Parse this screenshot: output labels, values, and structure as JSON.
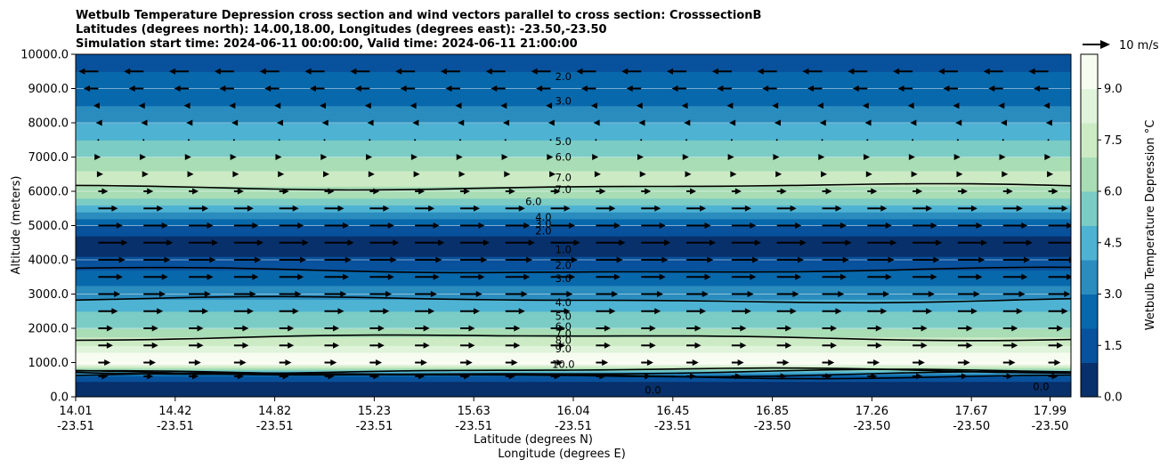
{
  "chart_data": {
    "type": "contour",
    "title_lines": [
      "Wetbulb Temperature Depression cross section and wind vectors parallel to cross section: CrosssectionB",
      "Latitudes (degrees north): 14.00,18.00, Longitudes (degrees east): -23.50,-23.50",
      "Simulation start time: 2024-06-11 00:00:00, Valid time: 2024-06-11 21:00:00"
    ],
    "ylabel": "Altitude (meters)",
    "xlabel_lat": "Latitude (degrees N)",
    "xlabel_lon": "Longitude (degrees E)",
    "ylim": [
      0,
      10000
    ],
    "y_ticks": [
      "0.0",
      "1000.0",
      "2000.0",
      "3000.0",
      "4000.0",
      "5000.0",
      "6000.0",
      "7000.0",
      "8000.0",
      "9000.0",
      "10000.0"
    ],
    "y_tick_values": [
      0,
      1000,
      2000,
      3000,
      4000,
      5000,
      6000,
      7000,
      8000,
      9000,
      10000
    ],
    "x_tick_lat": [
      "14.01",
      "14.42",
      "14.82",
      "15.23",
      "15.63",
      "16.04",
      "16.45",
      "16.85",
      "17.26",
      "17.67",
      "17.99"
    ],
    "x_tick_lon": [
      "-23.51",
      "-23.51",
      "-23.51",
      "-23.51",
      "-23.51",
      "-23.51",
      "-23.51",
      "-23.50",
      "-23.50",
      "-23.50",
      "-23.50"
    ],
    "x_tick_positions": [
      0,
      0.1,
      0.2,
      0.3,
      0.4,
      0.5,
      0.6,
      0.7,
      0.8,
      0.9,
      0.979
    ],
    "colorbar": {
      "label": "Wetbulb Temperature Depression °C",
      "min": 0,
      "max": 10,
      "ticks": [
        "0.0",
        "1.5",
        "3.0",
        "4.5",
        "6.0",
        "7.5",
        "9.0"
      ],
      "tick_values": [
        0,
        1.5,
        3.0,
        4.5,
        6.0,
        7.5,
        9.0
      ],
      "colors": [
        "#08306b",
        "#08519c",
        "#0868ac",
        "#2b8cbe",
        "#4eb3d3",
        "#7bccc4",
        "#a8ddb5",
        "#ccebc5",
        "#e0f3db",
        "#f7fcf0"
      ]
    },
    "wind_key": {
      "label": "10 m/s",
      "speed": 10
    },
    "depression_profile": {
      "altitudes": [
        0,
        300,
        600,
        800,
        1000,
        1300,
        1600,
        2000,
        2500,
        3000,
        3500,
        4000,
        4300,
        4700,
        5000,
        5400,
        5800,
        6200,
        6600,
        7000,
        7500,
        8000,
        8500,
        9000,
        9500,
        10000
      ],
      "values": [
        1.0,
        0.5,
        1.5,
        6.0,
        10.0,
        9.0,
        7.5,
        6.0,
        5.0,
        3.5,
        2.5,
        1.2,
        0.6,
        1.0,
        2.0,
        4.0,
        6.0,
        7.2,
        7.0,
        6.0,
        5.0,
        4.0,
        3.0,
        2.2,
        2.0,
        1.8
      ]
    },
    "contour_levels": [
      1.0,
      2.0,
      3.0,
      4.0,
      5.0,
      6.0,
      7.0,
      8.0,
      9.0,
      10.0
    ],
    "contour_labels": [
      {
        "text": "2.0",
        "x": 0.49,
        "alt": 9350
      },
      {
        "text": "3.0",
        "x": 0.49,
        "alt": 8630
      },
      {
        "text": "5.0",
        "x": 0.49,
        "alt": 7450
      },
      {
        "text": "6.0",
        "x": 0.49,
        "alt": 7000
      },
      {
        "text": "7.0",
        "x": 0.49,
        "alt": 6400
      },
      {
        "text": "7.0",
        "x": 0.49,
        "alt": 6050
      },
      {
        "text": "6.0",
        "x": 0.46,
        "alt": 5700
      },
      {
        "text": "4.0",
        "x": 0.47,
        "alt": 5250
      },
      {
        "text": "3.0",
        "x": 0.47,
        "alt": 5050
      },
      {
        "text": "2.0",
        "x": 0.47,
        "alt": 4850
      },
      {
        "text": "1.0",
        "x": 0.49,
        "alt": 4300
      },
      {
        "text": "2.0",
        "x": 0.49,
        "alt": 3850
      },
      {
        "text": "3.0",
        "x": 0.49,
        "alt": 3450
      },
      {
        "text": "4.0",
        "x": 0.49,
        "alt": 2750
      },
      {
        "text": "5.0",
        "x": 0.49,
        "alt": 2350
      },
      {
        "text": "6.0",
        "x": 0.49,
        "alt": 2050
      },
      {
        "text": "7.0",
        "x": 0.49,
        "alt": 1850
      },
      {
        "text": "8.0",
        "x": 0.49,
        "alt": 1650
      },
      {
        "text": "9.0",
        "x": 0.49,
        "alt": 1400
      },
      {
        "text": "10.0",
        "x": 0.49,
        "alt": 950
      },
      {
        "text": "0.0",
        "x": 0.58,
        "alt": 200
      },
      {
        "text": "0.0",
        "x": 0.97,
        "alt": 300
      }
    ],
    "wind_rows": [
      {
        "alt": 9500,
        "speed": -4
      },
      {
        "alt": 9000,
        "speed": -3
      },
      {
        "alt": 8500,
        "speed": -1
      },
      {
        "alt": 8000,
        "speed": -0.5
      },
      {
        "alt": 7500,
        "speed": 0
      },
      {
        "alt": 7000,
        "speed": 0.5
      },
      {
        "alt": 6500,
        "speed": 1
      },
      {
        "alt": 6000,
        "speed": 2
      },
      {
        "alt": 5500,
        "speed": 4
      },
      {
        "alt": 5000,
        "speed": 5
      },
      {
        "alt": 4500,
        "speed": 6
      },
      {
        "alt": 4000,
        "speed": 5.5
      },
      {
        "alt": 3500,
        "speed": 5
      },
      {
        "alt": 3000,
        "speed": 4.5
      },
      {
        "alt": 2500,
        "speed": 4
      },
      {
        "alt": 2000,
        "speed": 3
      },
      {
        "alt": 1500,
        "speed": 3
      },
      {
        "alt": 1000,
        "speed": 2.5
      },
      {
        "alt": 600,
        "speed": 2
      }
    ]
  }
}
